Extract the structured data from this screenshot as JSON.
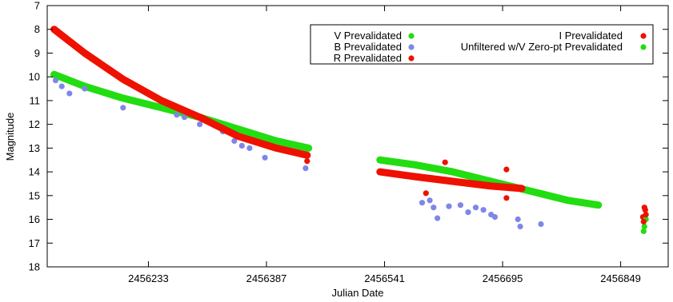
{
  "chart_data": {
    "type": "scatter",
    "title": "",
    "xlabel": "Julian Date",
    "ylabel": "Magnitude",
    "xlim": [
      2456101,
      2456911
    ],
    "ylim": [
      18,
      7
    ],
    "y_inverted": true,
    "x_ticks": [
      2456233,
      2456387,
      2456541,
      2456695,
      2456849
    ],
    "x_tick_labels": [
      "2456233",
      "2456387",
      "2456541",
      "2456695",
      "2456849"
    ],
    "y_ticks": [
      7,
      8,
      9,
      10,
      11,
      12,
      13,
      14,
      15,
      16,
      17,
      18
    ],
    "y_tick_labels": [
      "7",
      "8",
      "9",
      "10",
      "11",
      "12",
      "13",
      "14",
      "15",
      "16",
      "17",
      "18"
    ],
    "grid": false,
    "legend_position": "top-right",
    "series": [
      {
        "name": "V Prevalidated",
        "color": "#22dd11",
        "segments": [
          {
            "x": [
              2456110,
              2456150,
              2456200,
              2456250,
              2456300,
              2456350,
              2456400,
              2456442
            ],
            "y": [
              9.9,
              10.4,
              10.9,
              11.3,
              11.7,
              12.2,
              12.7,
              13.0
            ]
          },
          {
            "x": [
              2456535,
              2456580,
              2456630,
              2456680,
              2456730,
              2456780,
              2456820
            ],
            "y": [
              13.5,
              13.7,
              14.0,
              14.4,
              14.8,
              15.2,
              15.4
            ]
          }
        ]
      },
      {
        "name": "B Prevalidated",
        "color": "#7f86e8",
        "points": [
          {
            "x": 2456112,
            "y": 10.15
          },
          {
            "x": 2456120,
            "y": 10.4
          },
          {
            "x": 2456130,
            "y": 10.7
          },
          {
            "x": 2456150,
            "y": 10.5
          },
          {
            "x": 2456200,
            "y": 11.3
          },
          {
            "x": 2456270,
            "y": 11.6
          },
          {
            "x": 2456280,
            "y": 11.7
          },
          {
            "x": 2456300,
            "y": 12.0
          },
          {
            "x": 2456330,
            "y": 12.3
          },
          {
            "x": 2456345,
            "y": 12.7
          },
          {
            "x": 2456355,
            "y": 12.9
          },
          {
            "x": 2456365,
            "y": 13.0
          },
          {
            "x": 2456385,
            "y": 13.4
          },
          {
            "x": 2456438,
            "y": 13.85
          },
          {
            "x": 2456590,
            "y": 15.3
          },
          {
            "x": 2456600,
            "y": 15.2
          },
          {
            "x": 2456605,
            "y": 15.5
          },
          {
            "x": 2456610,
            "y": 15.95
          },
          {
            "x": 2456625,
            "y": 15.45
          },
          {
            "x": 2456640,
            "y": 15.4
          },
          {
            "x": 2456650,
            "y": 15.7
          },
          {
            "x": 2456660,
            "y": 15.5
          },
          {
            "x": 2456670,
            "y": 15.6
          },
          {
            "x": 2456680,
            "y": 15.8
          },
          {
            "x": 2456685,
            "y": 15.9
          },
          {
            "x": 2456715,
            "y": 16.0
          },
          {
            "x": 2456718,
            "y": 16.3
          },
          {
            "x": 2456745,
            "y": 16.2
          }
        ]
      },
      {
        "name": "R Prevalidated",
        "color": "#ee1100",
        "segments": [
          {
            "x": [
              2456110,
              2456150,
              2456200,
              2456250,
              2456300,
              2456350,
              2456400,
              2456440
            ],
            "y": [
              8.0,
              9.0,
              10.1,
              11.0,
              11.7,
              12.5,
              13.0,
              13.3
            ]
          },
          {
            "x": [
              2456535,
              2456580,
              2456630,
              2456680,
              2456720
            ],
            "y": [
              14.0,
              14.2,
              14.4,
              14.6,
              14.7
            ]
          }
        ],
        "points": [
          {
            "x": 2456440,
            "y": 13.55
          },
          {
            "x": 2456620,
            "y": 13.6
          },
          {
            "x": 2456700,
            "y": 13.9
          },
          {
            "x": 2456595,
            "y": 14.9
          },
          {
            "x": 2456700,
            "y": 15.1
          },
          {
            "x": 2456880,
            "y": 15.5
          },
          {
            "x": 2456882,
            "y": 15.8
          },
          {
            "x": 2456879,
            "y": 16.1
          }
        ]
      },
      {
        "name": "I Prevalidated",
        "color": "#ee1100",
        "points": [
          {
            "x": 2456881,
            "y": 15.6
          },
          {
            "x": 2456878,
            "y": 15.9
          }
        ]
      },
      {
        "name": "Unfiltered w/V Zero-pt Prevalidated",
        "color": "#22dd11",
        "points": [
          {
            "x": 2456880,
            "y": 16.3
          },
          {
            "x": 2456879,
            "y": 16.5
          },
          {
            "x": 2456882,
            "y": 16.0
          }
        ]
      }
    ]
  }
}
